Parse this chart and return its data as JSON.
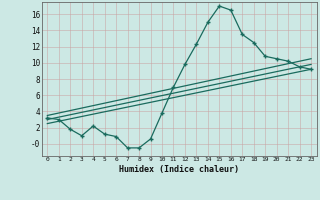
{
  "xlabel": "Humidex (Indice chaleur)",
  "bg_color": "#cce8e4",
  "grid_color_major": "#b8d8d4",
  "grid_color_minor": "#d4ecea",
  "line_color": "#1a6b5e",
  "xlim": [
    -0.5,
    23.5
  ],
  "ylim": [
    -1.5,
    17.5
  ],
  "xticks": [
    0,
    1,
    2,
    3,
    4,
    5,
    6,
    7,
    8,
    9,
    10,
    11,
    12,
    13,
    14,
    15,
    16,
    17,
    18,
    19,
    20,
    21,
    22,
    23
  ],
  "yticks": [
    0,
    2,
    4,
    6,
    8,
    10,
    12,
    14,
    16
  ],
  "ytick_labels": [
    "-0",
    "2",
    "4",
    "6",
    "8",
    "10",
    "12",
    "14",
    "16"
  ],
  "main_curve_x": [
    0,
    1,
    2,
    3,
    4,
    5,
    6,
    7,
    8,
    9,
    10,
    11,
    12,
    13,
    14,
    15,
    16,
    17,
    18,
    19,
    20,
    21,
    22,
    23
  ],
  "main_curve_y": [
    3.2,
    3.0,
    1.8,
    1.0,
    2.2,
    1.2,
    0.9,
    -0.5,
    -0.5,
    0.6,
    3.8,
    7.0,
    9.8,
    12.3,
    15.0,
    17.0,
    16.5,
    13.5,
    12.5,
    10.8,
    10.5,
    10.2,
    9.5,
    9.2
  ],
  "line1_x": [
    0,
    23
  ],
  "line1_y": [
    3.5,
    10.5
  ],
  "line2_x": [
    0,
    23
  ],
  "line2_y": [
    3.0,
    9.8
  ],
  "line3_x": [
    0,
    23
  ],
  "line3_y": [
    2.5,
    9.2
  ]
}
